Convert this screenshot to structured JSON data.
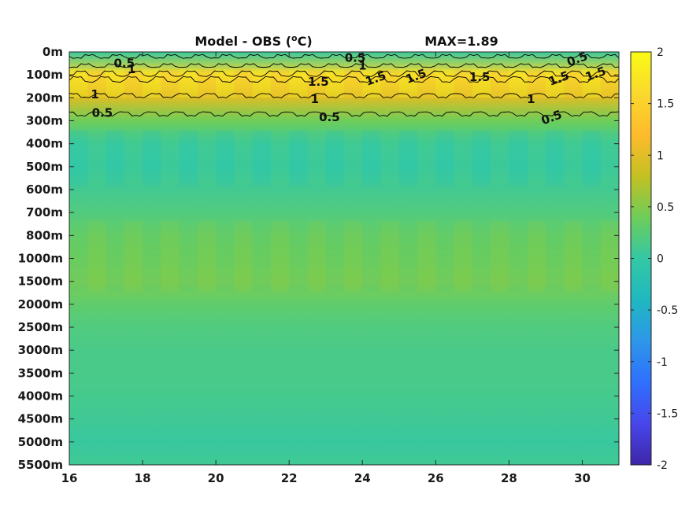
{
  "chart_data": {
    "type": "heatmap",
    "title": "Model - OBS (°C)",
    "title_parts": {
      "prefix": "Model - OBS (",
      "superscript": "o",
      "suffix": "C)"
    },
    "annotation": "MAX=1.89",
    "x_ticks": [
      "16",
      "18",
      "20",
      "22",
      "24",
      "26",
      "28",
      "30"
    ],
    "x_tick_values": [
      16,
      18,
      20,
      22,
      24,
      26,
      28,
      30
    ],
    "xlim": [
      16,
      31
    ],
    "y_ticks": [
      "0m",
      "100m",
      "200m",
      "300m",
      "400m",
      "500m",
      "600m",
      "700m",
      "800m",
      "1000m",
      "1500m",
      "2000m",
      "2500m",
      "3000m",
      "3500m",
      "4000m",
      "4500m",
      "5000m",
      "5500m"
    ],
    "y_direction": "depth increasing downward",
    "colorbar": {
      "range": [
        -2,
        2
      ],
      "ticks": [
        "2",
        "1.5",
        "1",
        "0.5",
        "0",
        "-0.5",
        "-1",
        "-1.5",
        "-2"
      ],
      "tick_values": [
        2,
        1.5,
        1,
        0.5,
        0,
        -0.5,
        -1,
        -1.5,
        -2
      ],
      "colormap": "parula",
      "colors": [
        "#3e26a8",
        "#4746eb",
        "#2f70fd",
        "#2d97e9",
        "#1fb8c0",
        "#34c8a4",
        "#6ecd59",
        "#c4c022",
        "#ffbb2c",
        "#fad92c",
        "#f9fb15"
      ]
    },
    "depth_profile": [
      {
        "depth": "0m",
        "value": 0.05
      },
      {
        "depth": "100m",
        "value": 1.6
      },
      {
        "depth": "200m",
        "value": 0.95
      },
      {
        "depth": "300m",
        "value": 0.4
      },
      {
        "depth": "400m",
        "value": 0.05
      },
      {
        "depth": "500m",
        "value": 0.0
      },
      {
        "depth": "600m",
        "value": 0.1
      },
      {
        "depth": "700m",
        "value": 0.2
      },
      {
        "depth": "800m",
        "value": 0.35
      },
      {
        "depth": "1000m",
        "value": 0.4
      },
      {
        "depth": "1500m",
        "value": 0.45
      },
      {
        "depth": "2000m",
        "value": 0.3
      },
      {
        "depth": "2500m",
        "value": 0.2
      },
      {
        "depth": "3000m",
        "value": 0.15
      },
      {
        "depth": "3500m",
        "value": 0.15
      },
      {
        "depth": "4000m",
        "value": 0.12
      },
      {
        "depth": "4500m",
        "value": 0.08
      },
      {
        "depth": "5000m",
        "value": 0.03
      },
      {
        "depth": "5500m",
        "value": 0.08
      }
    ],
    "contour_levels": [
      0.5,
      1,
      1.5
    ],
    "contour_labels": [
      {
        "text": "0.5",
        "x": 17.5,
        "depth": "50m"
      },
      {
        "text": "1",
        "x": 17.7,
        "depth": "75m"
      },
      {
        "text": "0.5",
        "x": 23.8,
        "depth": "25m"
      },
      {
        "text": "1",
        "x": 24.0,
        "depth": "60m"
      },
      {
        "text": "0.5",
        "x": 29.9,
        "depth": "30m"
      },
      {
        "text": "1.5",
        "x": 22.8,
        "depth": "130m"
      },
      {
        "text": "1.5",
        "x": 24.4,
        "depth": "115m"
      },
      {
        "text": "1.5",
        "x": 25.5,
        "depth": "105m"
      },
      {
        "text": "1.5",
        "x": 27.2,
        "depth": "110m"
      },
      {
        "text": "1.5",
        "x": 29.4,
        "depth": "115m"
      },
      {
        "text": "1.5",
        "x": 30.4,
        "depth": "95m"
      },
      {
        "text": "1",
        "x": 16.7,
        "depth": "185m"
      },
      {
        "text": "1",
        "x": 22.7,
        "depth": "205m"
      },
      {
        "text": "1",
        "x": 28.6,
        "depth": "205m"
      },
      {
        "text": "0.5",
        "x": 16.9,
        "depth": "265m"
      },
      {
        "text": "0.5",
        "x": 23.1,
        "depth": "285m"
      },
      {
        "text": "0.5",
        "x": 29.2,
        "depth": "285m"
      }
    ],
    "grid": false
  }
}
